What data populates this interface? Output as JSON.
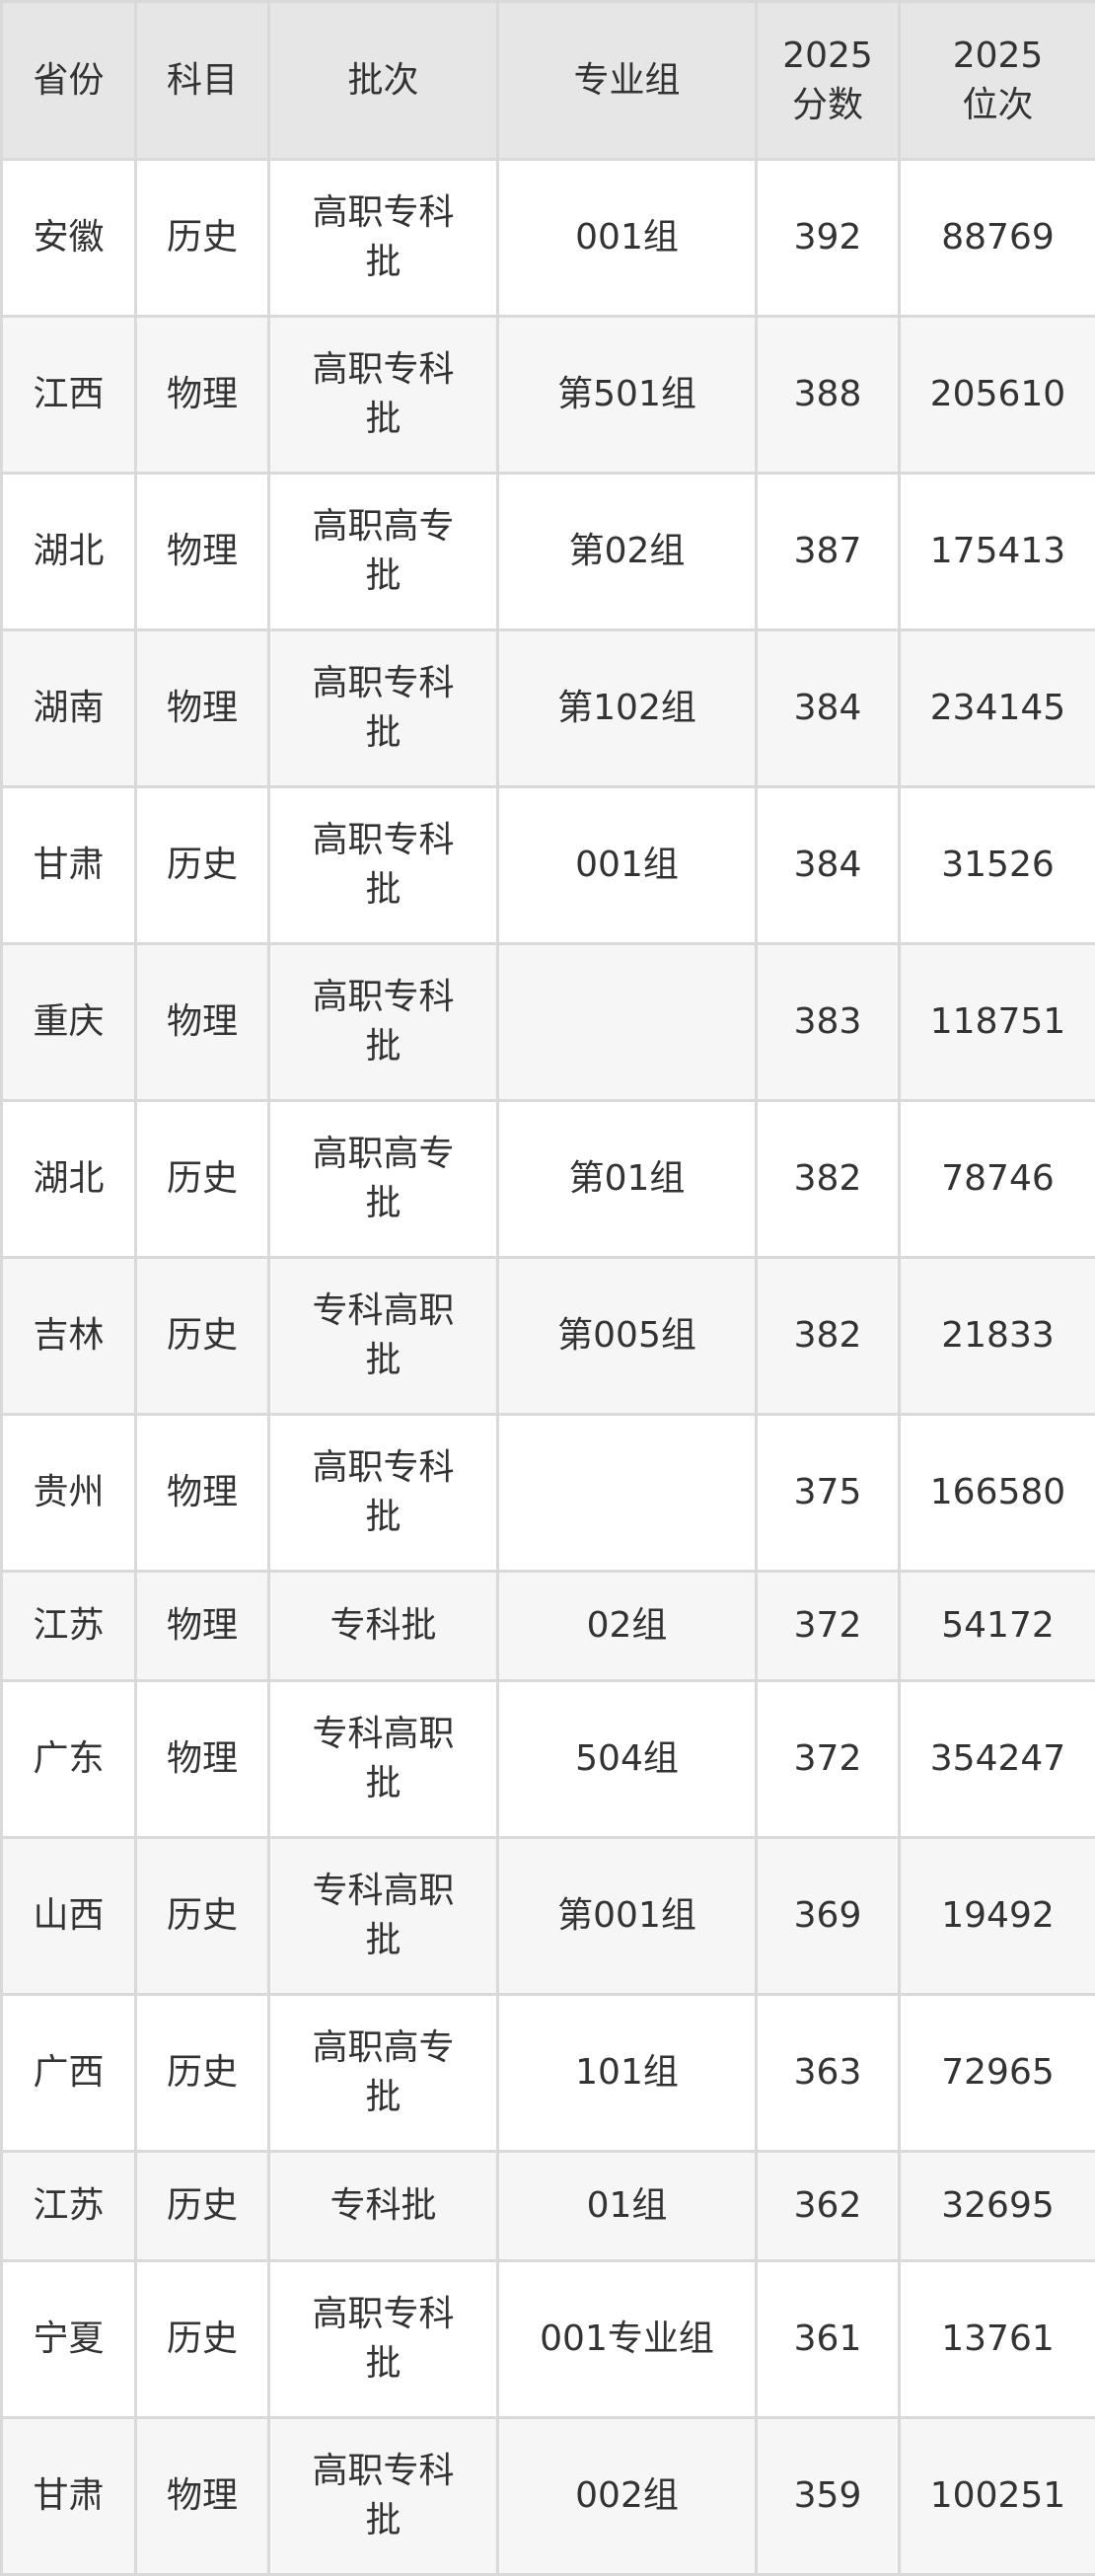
{
  "table": {
    "headers": {
      "province": "省份",
      "subject": "科目",
      "batch": "批次",
      "group": "专业组",
      "score_year": "2025",
      "score_label": "分数",
      "rank_year": "2025",
      "rank_label": "位次"
    },
    "rows": [
      {
        "province": "安徽",
        "subject": "历史",
        "batch": "高职专科批",
        "group": "001组",
        "score": "392",
        "rank": "88769"
      },
      {
        "province": "江西",
        "subject": "物理",
        "batch": "高职专科批",
        "group": "第501组",
        "score": "388",
        "rank": "205610"
      },
      {
        "province": "湖北",
        "subject": "物理",
        "batch": "高职高专批",
        "group": "第02组",
        "score": "387",
        "rank": "175413"
      },
      {
        "province": "湖南",
        "subject": "物理",
        "batch": "高职专科批",
        "group": "第102组",
        "score": "384",
        "rank": "234145"
      },
      {
        "province": "甘肃",
        "subject": "历史",
        "batch": "高职专科批",
        "group": "001组",
        "score": "384",
        "rank": "31526"
      },
      {
        "province": "重庆",
        "subject": "物理",
        "batch": "高职专科批",
        "group": "",
        "score": "383",
        "rank": "118751"
      },
      {
        "province": "湖北",
        "subject": "历史",
        "batch": "高职高专批",
        "group": "第01组",
        "score": "382",
        "rank": "78746"
      },
      {
        "province": "吉林",
        "subject": "历史",
        "batch": "专科高职批",
        "group": "第005组",
        "score": "382",
        "rank": "21833"
      },
      {
        "province": "贵州",
        "subject": "物理",
        "batch": "高职专科批",
        "group": "",
        "score": "375",
        "rank": "166580"
      },
      {
        "province": "江苏",
        "subject": "物理",
        "batch": "专科批",
        "group": "02组",
        "score": "372",
        "rank": "54172"
      },
      {
        "province": "广东",
        "subject": "物理",
        "batch": "专科高职批",
        "group": "504组",
        "score": "372",
        "rank": "354247"
      },
      {
        "province": "山西",
        "subject": "历史",
        "batch": "专科高职批",
        "group": "第001组",
        "score": "369",
        "rank": "19492"
      },
      {
        "province": "广西",
        "subject": "历史",
        "batch": "高职高专批",
        "group": "101组",
        "score": "363",
        "rank": "72965"
      },
      {
        "province": "江苏",
        "subject": "历史",
        "batch": "专科批",
        "group": "01组",
        "score": "362",
        "rank": "32695"
      },
      {
        "province": "宁夏",
        "subject": "历史",
        "batch": "高职专科批",
        "group": "001专业组",
        "score": "361",
        "rank": "13761"
      },
      {
        "province": "甘肃",
        "subject": "物理",
        "batch": "高职专科批",
        "group": "002组",
        "score": "359",
        "rank": "100251"
      }
    ]
  }
}
